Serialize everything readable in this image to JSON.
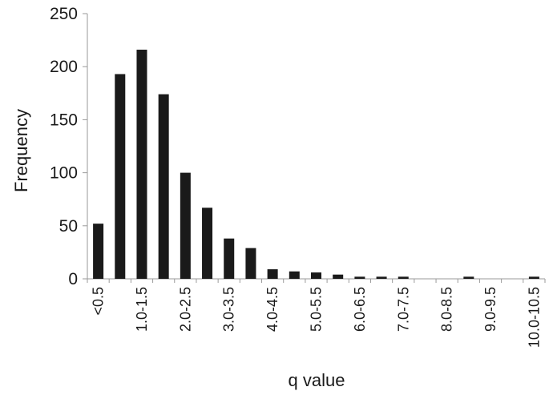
{
  "chart_data": {
    "type": "bar",
    "title": "",
    "xlabel": "q value",
    "ylabel": "Frequency",
    "categories": [
      "<0.5",
      "0.5-1.0",
      "1.0-1.5",
      "1.5-2.0",
      "2.0-2.5",
      "2.5-3.0",
      "3.0-3.5",
      "3.5-4.0",
      "4.0-4.5",
      "4.5-5.0",
      "5.0-5.5",
      "5.5-6.0",
      "6.0-6.5",
      "6.5-7.0",
      "7.0-7.5",
      "7.5-8.0",
      "8.0-8.5",
      "8.5-9.0",
      "9.0-9.5",
      "9.5-10.0",
      "10.0-10.5"
    ],
    "tick_labels": [
      "<0.5",
      "",
      "1.0-1.5",
      "",
      "2.0-2.5",
      "",
      "3.0-3.5",
      "",
      "4.0-4.5",
      "",
      "5.0-5.5",
      "",
      "6.0-6.5",
      "",
      "7.0-7.5",
      "",
      "8.0-8.5",
      "",
      "9.0-9.5",
      "",
      "10.0-10.5"
    ],
    "values": [
      52,
      193,
      216,
      174,
      100,
      67,
      38,
      29,
      9,
      7,
      6,
      4,
      2,
      2,
      2,
      0,
      0,
      2,
      0,
      0,
      2
    ],
    "ylim": [
      0,
      250
    ],
    "yticks": [
      0,
      50,
      100,
      150,
      200,
      250
    ],
    "grid": false,
    "legend": "none",
    "bar_color": "#1a1a1a",
    "axis_color": "#9a9a9a",
    "text_color": "#1a1a1a"
  }
}
